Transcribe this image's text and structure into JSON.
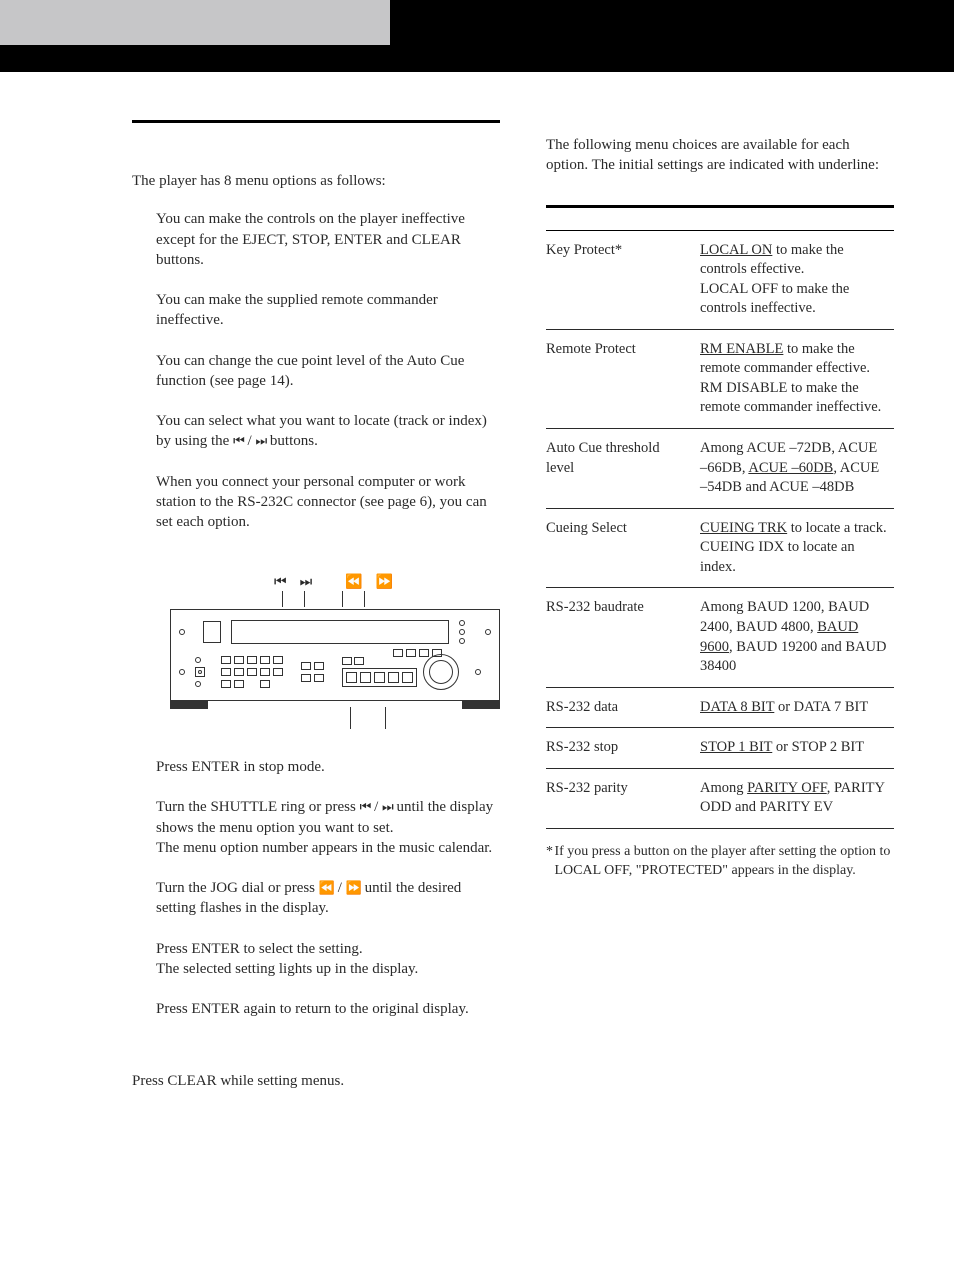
{
  "left": {
    "intro": "The player has 8 menu options as follows:",
    "items": [
      "You can make the controls on the player ineffective except for the EJECT, STOP, ENTER and CLEAR buttons.",
      "You can make the supplied remote commander ineffective.",
      "You can change the cue point level of the Auto Cue function (see page 14).",
      "You can select what you want to locate (track or index) by using the ⏮ / ⏭ buttons.",
      "When you connect your personal computer or work station to the RS-232C connector (see page 6), you can set each option."
    ],
    "steps": [
      "Press ENTER in stop mode.",
      "Turn the SHUTTLE ring or press ⏮ / ⏭ until the display shows the menu option you want to set.",
      "The menu option number appears in the music calendar.",
      "Turn the JOG dial or press ⏪ / ⏩ until the desired setting flashes in the display.",
      "Press ENTER to select the setting.",
      "The selected setting lights up in the display.",
      "Press ENTER again to return to the original display."
    ],
    "cancel": "Press CLEAR while setting menus."
  },
  "right": {
    "intro": "The following menu choices are available for each option. The initial settings are indicated with underline:",
    "rows": [
      {
        "label": "Key Protect*",
        "value_parts": [
          {
            "t": "LOCAL ON",
            "u": true
          },
          {
            "t": " to make the controls effective."
          },
          {
            "br": true
          },
          {
            "t": "LOCAL OFF to make the controls ineffective."
          }
        ]
      },
      {
        "label": "Remote Protect",
        "value_parts": [
          {
            "t": "RM ENABLE",
            "u": true
          },
          {
            "t": " to make the remote commander effective."
          },
          {
            "br": true
          },
          {
            "t": "RM DISABLE to make the remote commander ineffective."
          }
        ]
      },
      {
        "label": "Auto Cue threshold level",
        "value_parts": [
          {
            "t": "Among ACUE –72DB, ACUE –66DB, "
          },
          {
            "t": "ACUE –60DB",
            "u": true
          },
          {
            "t": ", ACUE –54DB and ACUE –48DB"
          }
        ]
      },
      {
        "label": "Cueing Select",
        "value_parts": [
          {
            "t": "CUEING TRK",
            "u": true
          },
          {
            "t": " to locate a track."
          },
          {
            "br": true
          },
          {
            "t": "CUEING IDX to locate an index."
          }
        ]
      },
      {
        "label": "RS-232 baudrate",
        "value_parts": [
          {
            "t": "Among BAUD 1200, BAUD 2400, BAUD 4800, "
          },
          {
            "t": "BAUD 9600",
            "u": true
          },
          {
            "t": ", BAUD 19200 and BAUD 38400"
          }
        ]
      },
      {
        "label": "RS-232 data",
        "value_parts": [
          {
            "t": "DATA 8 BIT",
            "u": true
          },
          {
            "t": " or DATA 7 BIT"
          }
        ]
      },
      {
        "label": "RS-232 stop",
        "value_parts": [
          {
            "t": "STOP 1 BIT",
            "u": true
          },
          {
            "t": " or STOP 2 BIT"
          }
        ]
      },
      {
        "label": "RS-232 parity",
        "value_parts": [
          {
            "t": "Among "
          },
          {
            "t": "PARITY OFF",
            "u": true
          },
          {
            "t": ", PARITY ODD and PARITY EV"
          }
        ]
      }
    ],
    "footnote": "If you press a button on the player after setting the option to LOCAL OFF, \"PROTECTED\" appears in the display."
  },
  "device_label_icons": [
    "skip-prev",
    "skip-next",
    "rew",
    "fwd"
  ],
  "colors": {
    "text": "#2a2a2a",
    "rule": "#000000",
    "header_black": "#000000",
    "header_gray": "#c6c6c8",
    "bg": "#ffffff"
  }
}
